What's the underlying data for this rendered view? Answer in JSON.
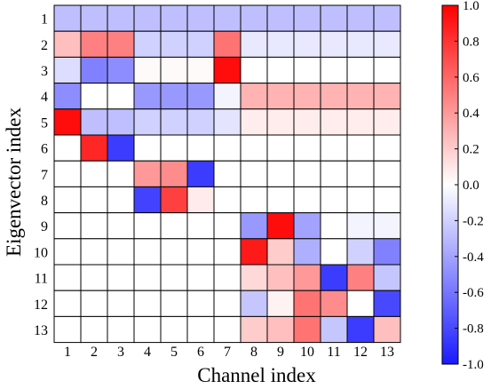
{
  "chart_data": {
    "type": "heatmap",
    "title": "",
    "xlabel": "Channel index",
    "ylabel": "Eigenvector index",
    "x_categories": [
      "1",
      "2",
      "3",
      "4",
      "5",
      "6",
      "7",
      "8",
      "9",
      "10",
      "11",
      "12",
      "13"
    ],
    "y_categories": [
      "1",
      "2",
      "3",
      "4",
      "5",
      "6",
      "7",
      "8",
      "9",
      "10",
      "11",
      "12",
      "13"
    ],
    "colorbar": {
      "range": [
        -1.0,
        1.0
      ],
      "ticks": [
        "1.0",
        "0.8",
        "0.6",
        "0.4",
        "0.2",
        "0.0",
        "-0.2",
        "-0.4",
        "-0.6",
        "-0.8",
        "-1.0"
      ],
      "colormap": {
        "low": "#1a1aff",
        "mid": "#ffffff",
        "high": "#ff0000"
      }
    },
    "values": [
      [
        -0.28,
        -0.28,
        -0.28,
        -0.28,
        -0.28,
        -0.28,
        -0.28,
        -0.28,
        -0.28,
        -0.28,
        -0.28,
        -0.28,
        -0.28
      ],
      [
        0.25,
        0.5,
        0.5,
        -0.2,
        -0.2,
        -0.2,
        0.55,
        -0.1,
        -0.1,
        -0.1,
        -0.1,
        -0.1,
        -0.1
      ],
      [
        -0.15,
        -0.55,
        -0.5,
        0.02,
        0.02,
        0.02,
        0.95,
        0.0,
        0.0,
        0.0,
        0.0,
        0.0,
        0.0
      ],
      [
        -0.5,
        0.0,
        0.0,
        -0.45,
        -0.45,
        -0.45,
        -0.05,
        0.3,
        0.3,
        0.3,
        0.3,
        0.3,
        0.3
      ],
      [
        0.95,
        -0.28,
        -0.28,
        -0.2,
        -0.2,
        -0.2,
        -0.12,
        0.07,
        0.07,
        0.07,
        0.07,
        0.07,
        0.07
      ],
      [
        0.0,
        0.85,
        -0.85,
        0.0,
        0.0,
        0.0,
        0.0,
        0.0,
        0.0,
        0.0,
        0.0,
        0.0,
        0.0
      ],
      [
        0.0,
        0.0,
        0.0,
        0.4,
        0.45,
        -0.85,
        0.0,
        0.0,
        0.0,
        0.0,
        0.0,
        0.0,
        0.0
      ],
      [
        0.0,
        0.0,
        0.0,
        -0.82,
        0.75,
        0.08,
        0.0,
        0.0,
        0.0,
        0.0,
        0.0,
        0.0,
        0.0
      ],
      [
        0.0,
        0.0,
        0.0,
        0.0,
        0.0,
        0.0,
        0.0,
        -0.45,
        0.95,
        -0.4,
        0.0,
        -0.05,
        -0.05
      ],
      [
        0.0,
        0.0,
        0.0,
        0.0,
        0.0,
        0.0,
        0.0,
        0.9,
        0.2,
        -0.35,
        0.0,
        -0.2,
        -0.55
      ],
      [
        0.0,
        0.0,
        0.0,
        0.0,
        0.0,
        0.0,
        0.0,
        0.15,
        0.25,
        0.4,
        -0.85,
        0.5,
        -0.25
      ],
      [
        0.0,
        0.0,
        0.0,
        0.0,
        0.0,
        0.0,
        0.0,
        -0.25,
        0.05,
        0.55,
        0.45,
        0.0,
        -0.8
      ],
      [
        0.0,
        0.0,
        0.0,
        0.0,
        0.0,
        0.0,
        0.0,
        0.2,
        0.25,
        0.55,
        -0.25,
        -0.85,
        0.25
      ]
    ]
  }
}
